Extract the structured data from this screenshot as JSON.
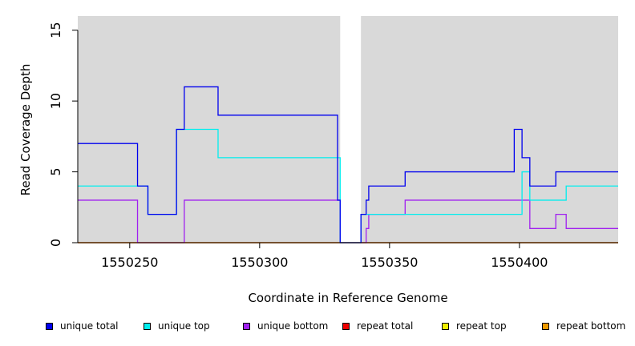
{
  "chart_data": {
    "type": "line",
    "title": "",
    "xlabel": "Coordinate in Reference Genome",
    "ylabel": "Read Coverage Depth",
    "xlim": [
      1550230,
      1550438
    ],
    "ylim": [
      0,
      16
    ],
    "xticks": [
      1550250,
      1550300,
      1550350,
      1550400
    ],
    "yticks": [
      0,
      5,
      10,
      15
    ],
    "grid": false,
    "background_color": "#d9d9d9",
    "gap": [
      1550331,
      1550339
    ],
    "legend_position": "bottom",
    "series": [
      {
        "name": "unique total",
        "color": "#0000ee",
        "x": [
          1550230,
          1550253,
          1550257,
          1550268,
          1550271,
          1550284,
          1550330,
          1550331,
          1550339,
          1550341,
          1550342,
          1550343,
          1550356,
          1550398,
          1550401,
          1550404,
          1550414,
          1550438
        ],
        "y": [
          7,
          4,
          2,
          8,
          11,
          9,
          3,
          0,
          2,
          3,
          4,
          4,
          5,
          8,
          6,
          4,
          5,
          5
        ]
      },
      {
        "name": "unique top",
        "color": "#00eeee",
        "x": [
          1550230,
          1550253,
          1550257,
          1550268,
          1550284,
          1550330,
          1550331,
          1550339,
          1550342,
          1550343,
          1550356,
          1550398,
          1550401,
          1550404,
          1550418,
          1550438
        ],
        "y": [
          4,
          4,
          2,
          8,
          6,
          6,
          0,
          2,
          2,
          2,
          2,
          2,
          5,
          3,
          4,
          4
        ]
      },
      {
        "name": "unique bottom",
        "color": "#a020f0",
        "x": [
          1550230,
          1550253,
          1550271,
          1550330,
          1550331,
          1550339,
          1550341,
          1550342,
          1550356,
          1550404,
          1550414,
          1550418,
          1550438
        ],
        "y": [
          3,
          0,
          3,
          3,
          0,
          0,
          1,
          2,
          3,
          1,
          2,
          1,
          1
        ]
      },
      {
        "name": "repeat total",
        "color": "#ee0000",
        "x": [
          1550230,
          1550438
        ],
        "y": [
          0,
          0
        ]
      },
      {
        "name": "repeat top",
        "color": "#eeee00",
        "x": [
          1550230,
          1550438
        ],
        "y": [
          0,
          0
        ]
      },
      {
        "name": "repeat bottom",
        "color": "#ee9a00",
        "x": [
          1550230,
          1550438
        ],
        "y": [
          0,
          0
        ]
      }
    ]
  }
}
